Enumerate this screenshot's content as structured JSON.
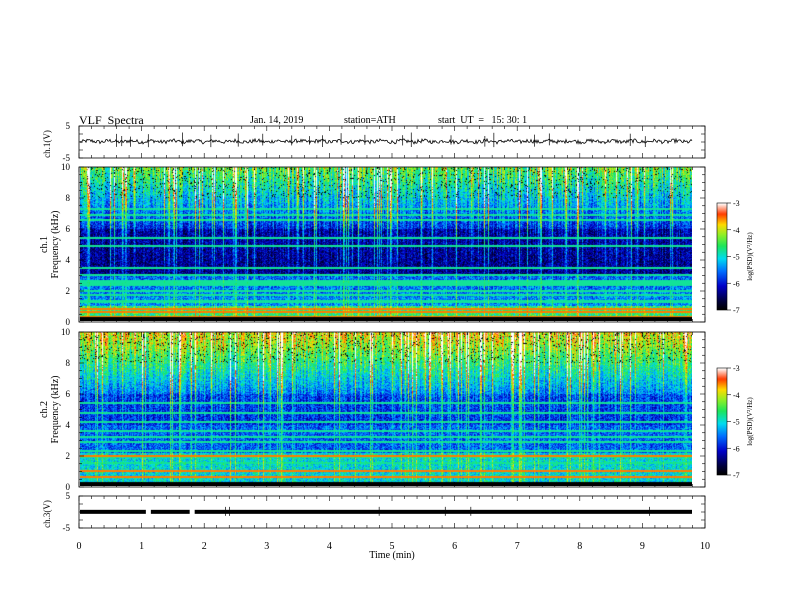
{
  "header": {
    "title": "VLF  Spectra",
    "date": "Jan. 14, 2019",
    "station": "station=ATH",
    "start": "start  UT  =   15: 30: 1"
  },
  "chart_data": [
    {
      "type": "line",
      "panel": "ch1-waveform",
      "ylabel": "ch.1(V)",
      "ylim": [
        -5,
        5
      ],
      "yticks": [
        "5",
        "-5"
      ],
      "xlim": [
        0,
        10
      ],
      "level": 0.2,
      "amplitude": 1.0
    },
    {
      "type": "heatmap",
      "panel": "ch1-spectrogram",
      "ylabel_line1": "ch.1",
      "ylabel_line2": "Frequency (kHz)",
      "ylim": [
        0,
        10
      ],
      "yticks": [
        "0",
        "2",
        "4",
        "6",
        "8",
        "10"
      ],
      "xlim": [
        0,
        9.8
      ],
      "colorbar": {
        "label": "log(PSD)(V²/Hz)",
        "range": [
          -7,
          -3
        ],
        "ticks": [
          "-3",
          "-4",
          "-5",
          "-6",
          "-7"
        ]
      },
      "bands_khz": [
        0.3,
        0.6,
        0.8,
        1.3,
        1.7,
        2.0,
        2.4,
        2.6,
        3.0,
        3.5,
        4.9,
        5.4,
        6.6,
        6.9,
        7.3
      ]
    },
    {
      "type": "heatmap",
      "panel": "ch2-spectrogram",
      "ylabel_line1": "ch.2",
      "ylabel_line2": "Frequency (kHz)",
      "ylim": [
        0,
        10
      ],
      "yticks": [
        "0",
        "2",
        "4",
        "6",
        "8",
        "10"
      ],
      "xlim": [
        0,
        9.8
      ],
      "colorbar": {
        "label": "log(PSD)(V²/Hz)",
        "range": [
          -7,
          -3
        ],
        "ticks": [
          "-3",
          "-4",
          "-5",
          "-6",
          "-7"
        ]
      },
      "bands_khz": [
        0.2,
        0.6,
        1.0,
        1.5,
        1.9,
        2.0,
        2.3,
        2.9,
        3.2,
        3.6,
        4.2,
        4.8,
        5.4
      ]
    },
    {
      "type": "line",
      "panel": "ch3-waveform",
      "ylabel": "ch.3(V)",
      "ylim": [
        -5,
        5
      ],
      "yticks": [
        "5",
        "-5"
      ],
      "xlim": [
        0,
        10
      ],
      "level": 0.05,
      "gaps_min": [
        1.1,
        1.8
      ],
      "xlabel": "Time  (min)",
      "xticks": [
        "0",
        "1",
        "2",
        "3",
        "4",
        "5",
        "6",
        "7",
        "8",
        "9",
        "10"
      ]
    }
  ]
}
